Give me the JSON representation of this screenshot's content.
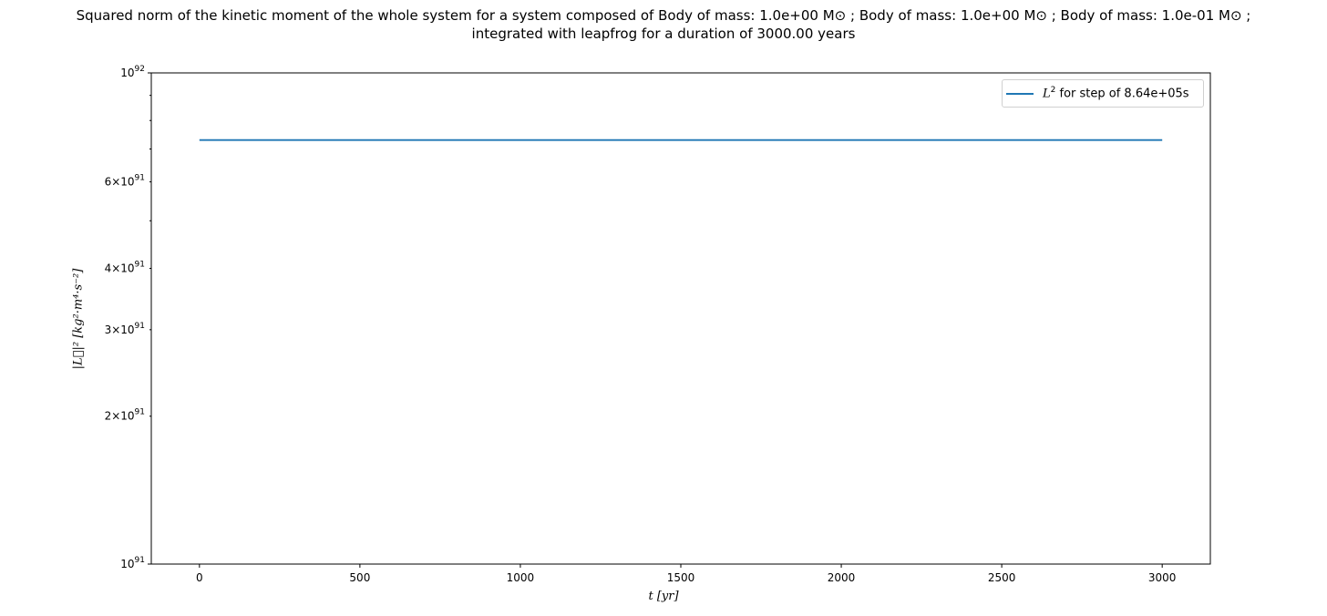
{
  "title": {
    "line1": "Squared norm of the kinetic moment of the whole system for a system composed of Body of mass: 1.0e+00 M⊙ ; Body of mass: 1.0e+00 M⊙ ; Body of mass: 1.0e-01 M⊙ ;",
    "line2": "integrated with leapfrog for a duration of 3000.00 years"
  },
  "chart_data": {
    "type": "line",
    "title": "Squared norm of the kinetic moment of the whole system for a system composed of Body of mass: 1.0e+00 M⊙ ; Body of mass: 1.0e+00 M⊙ ; Body of mass: 1.0e-01 M⊙ ; integrated with leapfrog for a duration of 3000.00 years",
    "xlabel": "t [yr]",
    "ylabel": "|L⃗|² [kg²·m⁴·s⁻²]",
    "xlim": [
      -150,
      3150
    ],
    "ylim": [
      1e+91,
      1e+92
    ],
    "yscale": "log",
    "grid": false,
    "legend_position": "top-right",
    "x_ticks": [
      0,
      500,
      1000,
      1500,
      2000,
      2500,
      3000
    ],
    "y_major_ticks": [
      {
        "value": 1e+91,
        "label": "10",
        "exp": "91"
      },
      {
        "value": 1e+92,
        "label": "10",
        "exp": "92"
      }
    ],
    "y_minor_ticks": [
      {
        "value": 2e+91,
        "label": "2×10",
        "exp": "91"
      },
      {
        "value": 3e+91,
        "label": "3×10",
        "exp": "91"
      },
      {
        "value": 4e+91,
        "label": "4×10",
        "exp": "91"
      },
      {
        "value": 5e+91,
        "label": "",
        "exp": ""
      },
      {
        "value": 6e+91,
        "label": "6×10",
        "exp": "91"
      },
      {
        "value": 7e+91,
        "label": "",
        "exp": ""
      },
      {
        "value": 8e+91,
        "label": "",
        "exp": ""
      },
      {
        "value": 9e+91,
        "label": "",
        "exp": ""
      }
    ],
    "series": [
      {
        "name": "L² for step of 8.64e+05s",
        "color": "#1f77b4",
        "x": [
          0,
          500,
          1000,
          1500,
          2000,
          2500,
          3000
        ],
        "y": [
          7.3e+91,
          7.3e+91,
          7.3e+91,
          7.3e+91,
          7.3e+91,
          7.3e+91,
          7.3e+91
        ]
      }
    ]
  },
  "legend": {
    "label_prefix": "L",
    "label_sup": "2",
    "label_rest": " for step of 8.64e+05s"
  },
  "axes": {
    "xlabel_var": "t",
    "xlabel_unit": "[yr]",
    "ylabel_text": "|L⃗|² [kg²·m⁴·s⁻²]"
  }
}
